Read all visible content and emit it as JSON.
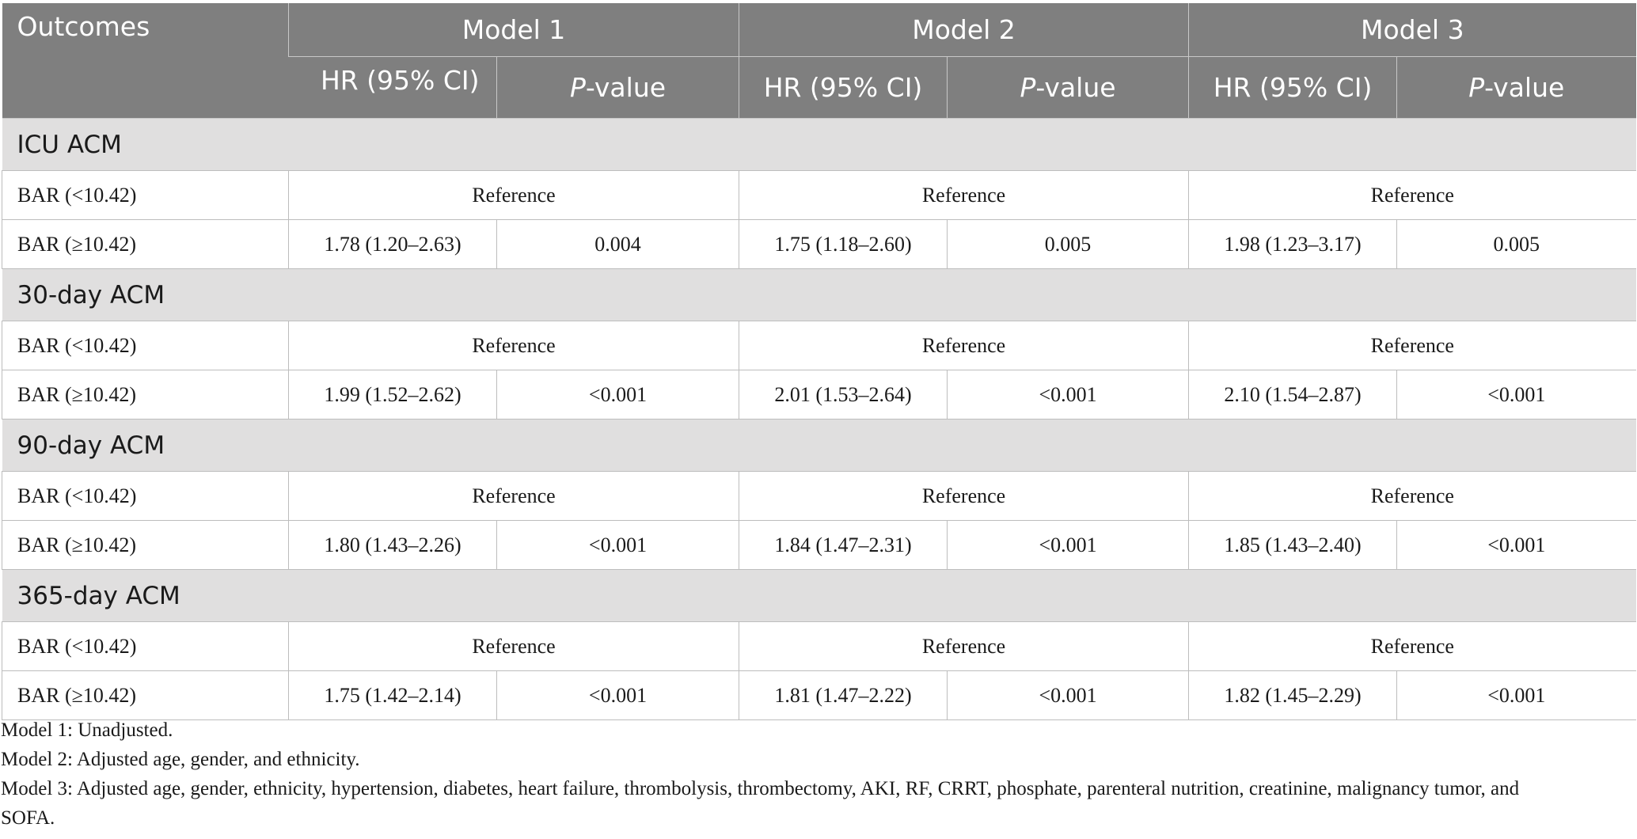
{
  "header": {
    "outcomes": "Outcomes",
    "models": [
      "Model 1",
      "Model 2",
      "Model 3"
    ],
    "hr": "HR (95% CI)",
    "p_italic": "P",
    "p_rest": "-value"
  },
  "sections": [
    {
      "title": "ICU ACM",
      "ref_label": "BAR (<10.42)",
      "ref_text": "Reference",
      "high_label": "BAR (≥10.42)",
      "values": [
        "1.78 (1.20–2.63)",
        "0.004",
        "1.75 (1.18–2.60)",
        "0.005",
        "1.98 (1.23–3.17)",
        "0.005"
      ]
    },
    {
      "title": "30-day ACM",
      "ref_label": "BAR (<10.42)",
      "ref_text": "Reference",
      "high_label": "BAR (≥10.42)",
      "values": [
        "1.99 (1.52–2.62)",
        "<0.001",
        "2.01 (1.53–2.64)",
        "<0.001",
        "2.10 (1.54–2.87)",
        "<0.001"
      ]
    },
    {
      "title": "90-day ACM",
      "ref_label": "BAR (<10.42)",
      "ref_text": "Reference",
      "high_label": "BAR (≥10.42)",
      "values": [
        "1.80 (1.43–2.26)",
        "<0.001",
        "1.84 (1.47–2.31)",
        "<0.001",
        "1.85 (1.43–2.40)",
        "<0.001"
      ]
    },
    {
      "title": "365-day ACM",
      "ref_label": "BAR (<10.42)",
      "ref_text": "Reference",
      "high_label": "BAR (≥10.42)",
      "values": [
        "1.75 (1.42–2.14)",
        "<0.001",
        "1.81 (1.47–2.22)",
        "<0.001",
        "1.82 (1.45–2.29)",
        "<0.001"
      ]
    }
  ],
  "notes": [
    "Model 1: Unadjusted.",
    "Model 2: Adjusted age, gender, and ethnicity.",
    "Model 3: Adjusted age, gender, ethnicity, hypertension, diabetes, heart failure, thrombolysis, thrombectomy, AKI, RF, CRRT, phosphate, parenteral nutrition, creatinine, malignancy tumor, and",
    "SOFA."
  ],
  "colors": {
    "header_bg": "#7f7f7f",
    "section_bg": "#e0dfdf",
    "border": "#bdbdbd"
  }
}
